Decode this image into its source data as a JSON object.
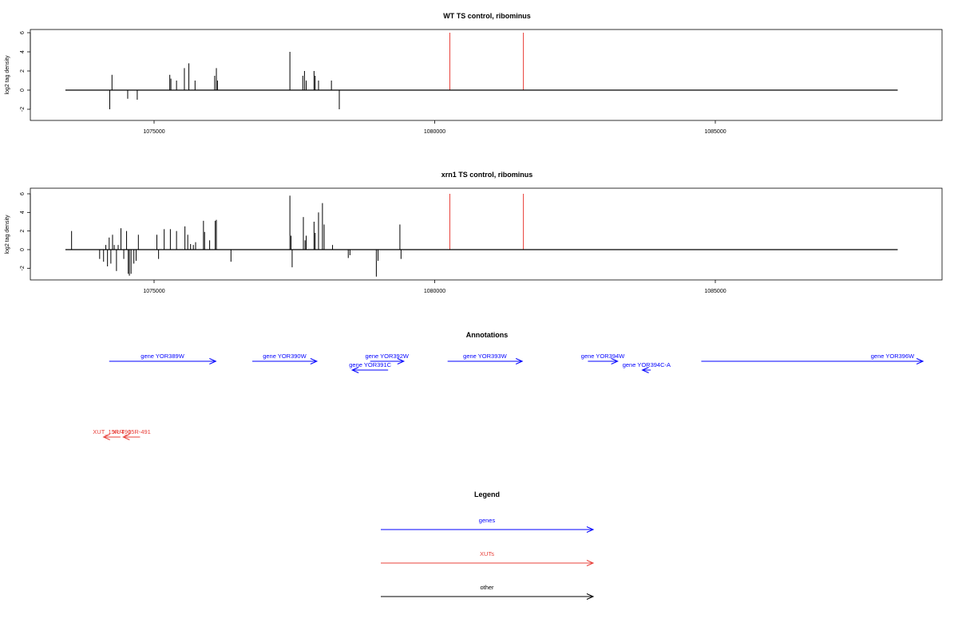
{
  "chart_data": [
    {
      "type": "bar",
      "title": "WT TS control, ribominus",
      "ylabel": "log2 tag density",
      "xlim": [
        1073400,
        1088300
      ],
      "ylim": [
        -3,
        6
      ],
      "yticks": [
        -2,
        0,
        2,
        4,
        6
      ],
      "xticks": [
        1075000,
        1080000,
        1085000
      ],
      "xtick_labels": [
        "1075000",
        "1080000",
        "1085000"
      ],
      "baseline": {
        "start": 1073420,
        "end": 1088250
      },
      "bars": [
        {
          "x": 1074210,
          "y": -2.0
        },
        {
          "x": 1074250,
          "y": 1.6
        },
        {
          "x": 1074530,
          "y": -0.9
        },
        {
          "x": 1074700,
          "y": -1.0
        },
        {
          "x": 1075280,
          "y": 1.6
        },
        {
          "x": 1075300,
          "y": 1.2
        },
        {
          "x": 1075400,
          "y": 1.0
        },
        {
          "x": 1075540,
          "y": 2.3
        },
        {
          "x": 1075620,
          "y": 2.8
        },
        {
          "x": 1075730,
          "y": 1.0
        },
        {
          "x": 1076080,
          "y": 1.5
        },
        {
          "x": 1076110,
          "y": 2.3
        },
        {
          "x": 1076130,
          "y": 1.0
        },
        {
          "x": 1077420,
          "y": 4.0
        },
        {
          "x": 1077650,
          "y": 1.5
        },
        {
          "x": 1077680,
          "y": 2.0
        },
        {
          "x": 1077710,
          "y": 1.0
        },
        {
          "x": 1077850,
          "y": 2.0
        },
        {
          "x": 1077870,
          "y": 1.5
        },
        {
          "x": 1077930,
          "y": 1.0
        },
        {
          "x": 1078160,
          "y": 1.0
        },
        {
          "x": 1078300,
          "y": -2.0
        }
      ],
      "marker_lines": [
        {
          "x": 1080270,
          "color": "#e8403a"
        },
        {
          "x": 1081580,
          "color": "#e8403a"
        }
      ]
    },
    {
      "type": "bar",
      "title": "xrn1 TS control, ribominus",
      "ylabel": "log2 tag density",
      "xlim": [
        1073400,
        1088300
      ],
      "ylim": [
        -3,
        6
      ],
      "yticks": [
        -2,
        0,
        2,
        4,
        6
      ],
      "xticks": [
        1075000,
        1080000,
        1085000
      ],
      "xtick_labels": [
        "1075000",
        "1080000",
        "1085000"
      ],
      "baseline": {
        "start": 1073420,
        "end": 1088250
      },
      "bars": [
        {
          "x": 1073530,
          "y": 2.0
        },
        {
          "x": 1074030,
          "y": -1.0
        },
        {
          "x": 1074100,
          "y": -1.3
        },
        {
          "x": 1074140,
          "y": 0.5
        },
        {
          "x": 1074170,
          "y": -1.8
        },
        {
          "x": 1074200,
          "y": 1.3
        },
        {
          "x": 1074230,
          "y": -1.5
        },
        {
          "x": 1074260,
          "y": 1.6
        },
        {
          "x": 1074290,
          "y": 0.5
        },
        {
          "x": 1074330,
          "y": -2.3
        },
        {
          "x": 1074360,
          "y": 0.5
        },
        {
          "x": 1074410,
          "y": 2.3
        },
        {
          "x": 1074460,
          "y": -1.0
        },
        {
          "x": 1074510,
          "y": 2.0
        },
        {
          "x": 1074540,
          "y": -2.6
        },
        {
          "x": 1074560,
          "y": -2.8
        },
        {
          "x": 1074590,
          "y": -2.6
        },
        {
          "x": 1074640,
          "y": -1.5
        },
        {
          "x": 1074680,
          "y": -1.2
        },
        {
          "x": 1074720,
          "y": 1.6
        },
        {
          "x": 1075050,
          "y": 1.6
        },
        {
          "x": 1075080,
          "y": -1.0
        },
        {
          "x": 1075180,
          "y": 2.2
        },
        {
          "x": 1075290,
          "y": 2.2
        },
        {
          "x": 1075400,
          "y": 2.0
        },
        {
          "x": 1075550,
          "y": 2.5
        },
        {
          "x": 1075600,
          "y": 1.6
        },
        {
          "x": 1075650,
          "y": 0.6
        },
        {
          "x": 1075700,
          "y": 0.5
        },
        {
          "x": 1075740,
          "y": 0.8
        },
        {
          "x": 1075880,
          "y": 3.1
        },
        {
          "x": 1075900,
          "y": 1.9
        },
        {
          "x": 1075990,
          "y": 1.0
        },
        {
          "x": 1076090,
          "y": 3.1
        },
        {
          "x": 1076110,
          "y": 3.2
        },
        {
          "x": 1076370,
          "y": -1.3
        },
        {
          "x": 1077420,
          "y": 5.8
        },
        {
          "x": 1077440,
          "y": 1.5
        },
        {
          "x": 1077460,
          "y": -1.9
        },
        {
          "x": 1077660,
          "y": 3.5
        },
        {
          "x": 1077690,
          "y": 1.0
        },
        {
          "x": 1077710,
          "y": 1.5
        },
        {
          "x": 1077850,
          "y": 3.0
        },
        {
          "x": 1077870,
          "y": 1.8
        },
        {
          "x": 1077930,
          "y": 4.0
        },
        {
          "x": 1078000,
          "y": 5.0
        },
        {
          "x": 1078030,
          "y": 2.7
        },
        {
          "x": 1078180,
          "y": 0.5
        },
        {
          "x": 1078460,
          "y": -0.9
        },
        {
          "x": 1078490,
          "y": -0.6
        },
        {
          "x": 1078960,
          "y": -2.9
        },
        {
          "x": 1078990,
          "y": -1.2
        },
        {
          "x": 1079380,
          "y": 2.7
        },
        {
          "x": 1079400,
          "y": -1.0
        }
      ],
      "marker_lines": [
        {
          "x": 1080270,
          "color": "#e8403a"
        },
        {
          "x": 1081580,
          "color": "#e8403a"
        }
      ]
    }
  ],
  "annotations": {
    "title": "Annotations",
    "features": [
      {
        "label": "gene YOR389W",
        "start": 1074200,
        "end": 1076100,
        "strand": "+",
        "type": "gene",
        "row": 0
      },
      {
        "label": "gene YOR390W",
        "start": 1076750,
        "end": 1077900,
        "strand": "+",
        "type": "gene",
        "row": 0
      },
      {
        "label": "gene YOR392W",
        "start": 1078850,
        "end": 1079450,
        "strand": "+",
        "type": "gene",
        "row": 0
      },
      {
        "label": "gene YOR391C",
        "start": 1078530,
        "end": 1079170,
        "strand": "-",
        "type": "gene",
        "row": 1
      },
      {
        "label": "gene YOR393W",
        "start": 1080230,
        "end": 1081560,
        "strand": "+",
        "type": "gene",
        "row": 0
      },
      {
        "label": "gene YOR394W",
        "start": 1082730,
        "end": 1083260,
        "strand": "+",
        "type": "gene",
        "row": 0
      },
      {
        "label": "gene YOR394C-A",
        "start": 1083700,
        "end": 1083850,
        "strand": "-",
        "type": "gene",
        "row": 1
      },
      {
        "label": "gene YOR396W",
        "start": 1084750,
        "end": 1088700,
        "strand": "+",
        "type": "gene",
        "row": 0
      },
      {
        "label": "XUT_15R-490",
        "start": 1074100,
        "end": 1074400,
        "strand": "-",
        "type": "xut",
        "row": 2
      },
      {
        "label": "XUT_15R-491",
        "start": 1074450,
        "end": 1074750,
        "strand": "-",
        "type": "xut",
        "row": 2
      }
    ]
  },
  "legend": {
    "title": "Legend",
    "items": [
      {
        "label": "genes",
        "color": "#0000ff"
      },
      {
        "label": "XUTs",
        "color": "#e8403a"
      },
      {
        "label": "other",
        "color": "#000000"
      }
    ]
  },
  "colors": {
    "gene": "#0000ff",
    "xut": "#e8403a",
    "axis": "#000000"
  }
}
